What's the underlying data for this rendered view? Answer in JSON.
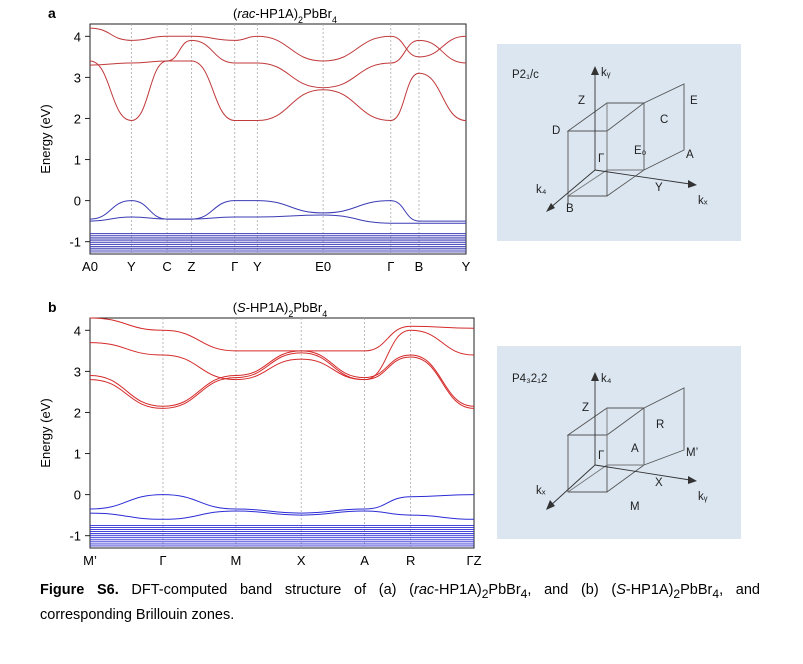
{
  "figure": {
    "caption_label": "Figure S6.",
    "caption_parts": [
      {
        "t": " DFT-computed band structure of (a) (",
        "s": "n"
      },
      {
        "t": "rac",
        "s": "i"
      },
      {
        "t": "-HP1A)",
        "s": "n"
      },
      {
        "t": "2",
        "s": "sub"
      },
      {
        "t": "PbBr",
        "s": "n"
      },
      {
        "t": "4",
        "s": "sub"
      },
      {
        "t": ", and (b) (",
        "s": "n"
      },
      {
        "t": "S",
        "s": "i"
      },
      {
        "t": "-HP1A)",
        "s": "n"
      },
      {
        "t": "2",
        "s": "sub"
      },
      {
        "t": "PbBr",
        "s": "n"
      },
      {
        "t": "4",
        "s": "sub"
      },
      {
        "t": ", and corresponding Brillouin zones.",
        "s": "n"
      }
    ]
  },
  "panels": [
    {
      "letter": "a",
      "title_parts": [
        {
          "t": "(",
          "s": "n"
        },
        {
          "t": "rac",
          "s": "i"
        },
        {
          "t": "-HP1A)",
          "s": "n"
        },
        {
          "t": "2",
          "s": "sub"
        },
        {
          "t": "PbBr",
          "s": "n"
        },
        {
          "t": "4",
          "s": "sub"
        }
      ],
      "bz_group": "P2₁/c",
      "bz_labels": [
        "kᵧ",
        "Z",
        "E",
        "D",
        "C",
        "Γ",
        "E₀",
        "A",
        "k₄",
        "B",
        "Y",
        "kₓ"
      ]
    },
    {
      "letter": "b",
      "title_parts": [
        {
          "t": "(",
          "s": "n"
        },
        {
          "t": "S",
          "s": "i"
        },
        {
          "t": "-HP1A)",
          "s": "n"
        },
        {
          "t": "2",
          "s": "sub"
        },
        {
          "t": "PbBr",
          "s": "n"
        },
        {
          "t": "4",
          "s": "sub"
        }
      ],
      "bz_group": "P4₃2₁2",
      "bz_labels": [
        "k₄",
        "Z",
        "R",
        "Γ",
        "A",
        "M’",
        "kₓ",
        "X",
        "M",
        "kᵧ"
      ]
    }
  ],
  "chart_data": [
    {
      "type": "line",
      "title": "(rac-HP1A)2PbBr4",
      "ylabel": "Energy (eV)",
      "ylim": [
        -1.3,
        4.3
      ],
      "yticks": [
        -1,
        0,
        1,
        2,
        3,
        4
      ],
      "kpoints": [
        "A0",
        "Y",
        "C",
        "Z",
        "Γ",
        "Y",
        "E0",
        "Γ",
        "B",
        "Y"
      ],
      "kpoint_x": [
        0.0,
        0.11,
        0.205,
        0.27,
        0.385,
        0.445,
        0.62,
        0.8,
        0.875,
        1.0
      ],
      "conduction_color": "#c0393b",
      "valence_color": "#3b3bb5",
      "series": [
        {
          "band": "conduction",
          "x": [
            0.0,
            0.11,
            0.205,
            0.27,
            0.385,
            0.445,
            0.62,
            0.8,
            0.875,
            1.0
          ],
          "y": [
            3.4,
            1.95,
            3.4,
            3.4,
            1.95,
            1.95,
            2.7,
            1.95,
            3.1,
            1.95
          ]
        },
        {
          "band": "conduction",
          "x": [
            0.0,
            0.11,
            0.205,
            0.27,
            0.385,
            0.445,
            0.62,
            0.8,
            0.875,
            1.0
          ],
          "y": [
            3.3,
            3.35,
            3.4,
            3.9,
            3.35,
            3.35,
            2.75,
            3.35,
            3.9,
            3.35
          ]
        },
        {
          "band": "conduction",
          "x": [
            0.0,
            0.11,
            0.205,
            0.27,
            0.385,
            0.445,
            0.62,
            0.8,
            0.875,
            1.0
          ],
          "y": [
            4.2,
            3.9,
            4.0,
            4.0,
            3.9,
            4.0,
            3.4,
            4.0,
            3.5,
            4.0
          ]
        },
        {
          "band": "valence",
          "x": [
            0.0,
            0.11,
            0.205,
            0.27,
            0.385,
            0.445,
            0.62,
            0.8,
            0.875,
            1.0
          ],
          "y": [
            -0.45,
            0.0,
            -0.45,
            -0.45,
            0.0,
            0.0,
            -0.3,
            0.0,
            -0.5,
            -0.5
          ]
        },
        {
          "band": "valence",
          "x": [
            0.0,
            0.11,
            0.205,
            0.27,
            0.385,
            0.445,
            0.62,
            0.8,
            0.875,
            1.0
          ],
          "y": [
            -0.5,
            -0.4,
            -0.45,
            -0.45,
            -0.4,
            -0.4,
            -0.35,
            -0.55,
            -0.55,
            -0.55
          ]
        }
      ],
      "valence_manifold_ylim": [
        -1.25,
        -0.8
      ]
    },
    {
      "type": "line",
      "title": "(S-HP1A)2PbBr4",
      "ylabel": "Energy (eV)",
      "ylim": [
        -1.3,
        4.3
      ],
      "yticks": [
        -1,
        0,
        1,
        2,
        3,
        4
      ],
      "kpoints": [
        "M’",
        "Γ",
        "M",
        "X",
        "A",
        "R",
        "ΓZ"
      ],
      "kpoint_x": [
        0.0,
        0.19,
        0.38,
        0.55,
        0.715,
        0.835,
        1.0
      ],
      "conduction_color": "#d52a2a",
      "valence_color": "#2b2bd6",
      "series": [
        {
          "band": "conduction",
          "x": [
            0.0,
            0.19,
            0.38,
            0.55,
            0.715,
            0.835,
            1.0
          ],
          "y": [
            2.8,
            2.1,
            2.85,
            3.45,
            2.8,
            3.35,
            2.1
          ]
        },
        {
          "band": "conduction",
          "x": [
            0.0,
            0.19,
            0.38,
            0.55,
            0.715,
            0.835,
            1.0
          ],
          "y": [
            2.9,
            2.15,
            2.9,
            3.5,
            2.85,
            3.4,
            2.15
          ]
        },
        {
          "band": "conduction",
          "x": [
            0.0,
            0.19,
            0.38,
            0.55,
            0.715,
            0.835,
            1.0
          ],
          "y": [
            3.7,
            3.4,
            2.8,
            3.3,
            2.8,
            4.0,
            3.4
          ]
        },
        {
          "band": "conduction",
          "x": [
            0.0,
            0.19,
            0.38,
            0.55,
            0.715,
            0.835,
            1.0
          ],
          "y": [
            4.3,
            4.0,
            3.5,
            3.5,
            3.5,
            4.1,
            4.05
          ]
        },
        {
          "band": "valence",
          "x": [
            0.0,
            0.19,
            0.38,
            0.55,
            0.715,
            0.835,
            1.0
          ],
          "y": [
            -0.35,
            0.0,
            -0.35,
            -0.45,
            -0.35,
            -0.05,
            0.0
          ]
        },
        {
          "band": "valence",
          "x": [
            0.0,
            0.19,
            0.38,
            0.55,
            0.715,
            0.835,
            1.0
          ],
          "y": [
            -0.45,
            -0.6,
            -0.4,
            -0.5,
            -0.4,
            -0.5,
            -0.6
          ]
        }
      ],
      "valence_manifold_ylim": [
        -1.25,
        -0.75
      ]
    }
  ]
}
